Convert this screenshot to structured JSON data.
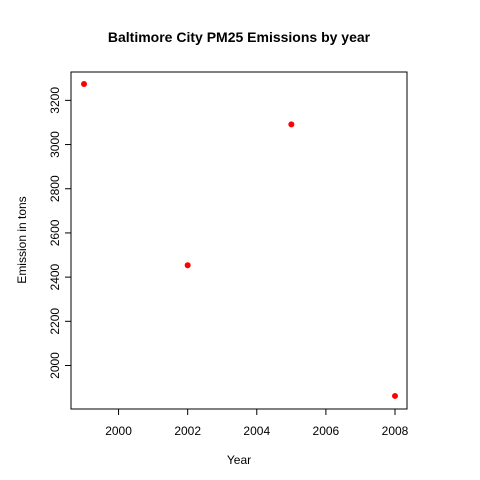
{
  "chart_data": {
    "type": "scatter",
    "title": "Baltimore City PM25 Emissions by year",
    "xlabel": "Year",
    "ylabel": "Emission in tons",
    "x": [
      1999,
      2002,
      2005,
      2008
    ],
    "y": [
      3274.18,
      2453.92,
      3091.35,
      1862.28
    ],
    "xlim": [
      1999,
      2008
    ],
    "ylim": [
      1862,
      3274
    ],
    "xticks": [
      2000,
      2002,
      2004,
      2006,
      2008
    ],
    "yticks": [
      2000,
      2200,
      2400,
      2600,
      2800,
      3000,
      3200
    ],
    "xtick_labels": [
      "2000",
      "2002",
      "2004",
      "2006",
      "2008"
    ],
    "ytick_labels": [
      "2000",
      "2200",
      "2400",
      "2600",
      "2800",
      "3000",
      "3200"
    ],
    "point_color": "#ff0000",
    "grid": false,
    "legend": "none"
  }
}
